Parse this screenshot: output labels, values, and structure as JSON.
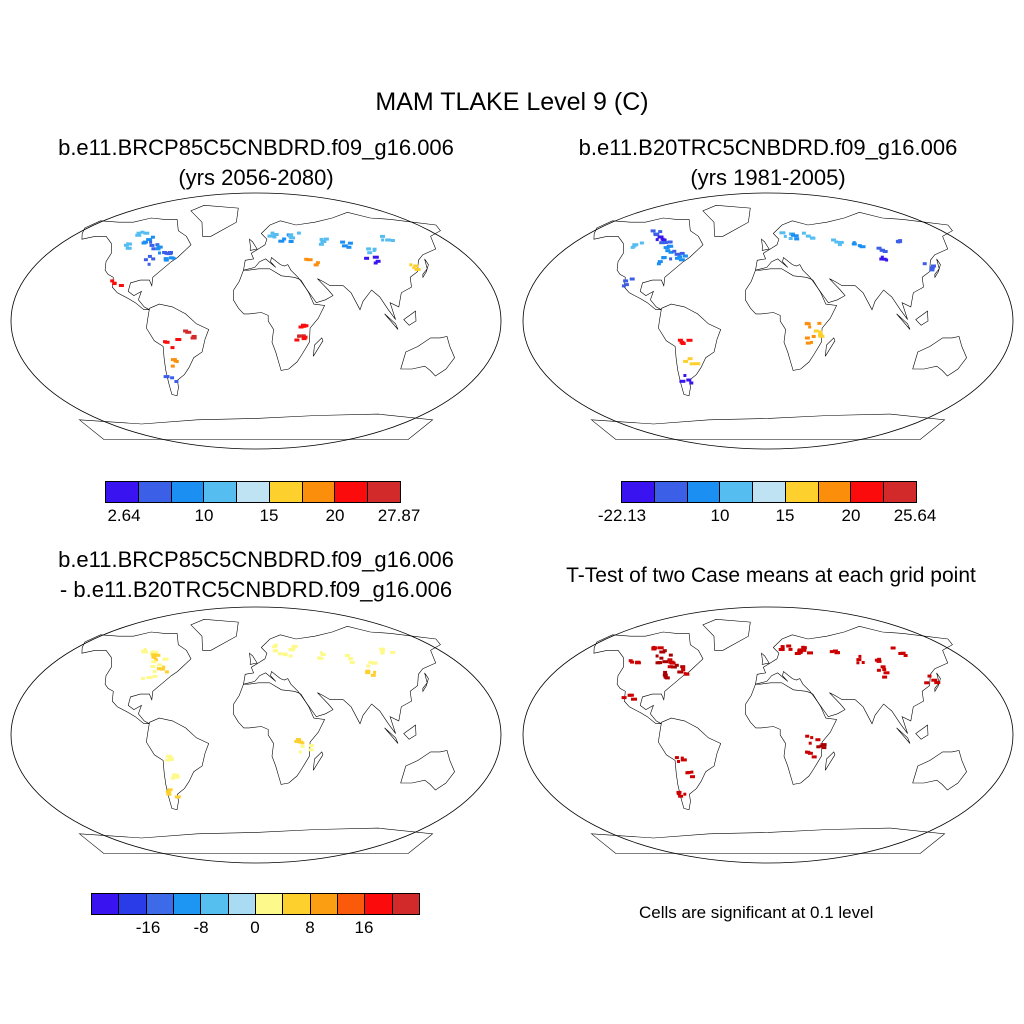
{
  "main_title": "MAM TLAKE Level 9 (C)",
  "panels": {
    "top_left": {
      "line1": "b.e11.BRCP85C5CNBDRD.f09_g16.006",
      "line2": "(yrs 2056-2080)"
    },
    "top_right": {
      "line1": "b.e11.B20TRC5CNBDRD.f09_g16.006",
      "line2": "(yrs 1981-2005)"
    },
    "bottom_left": {
      "line1": "b.e11.BRCP85C5CNBDRD.f09_g16.006",
      "line2": "- b.e11.B20TRC5CNBDRD.f09_g16.006"
    },
    "bottom_right": {
      "line1": "T-Test of two Case means at each grid point"
    }
  },
  "colorbars": {
    "top_left": {
      "colors": [
        "#3a14f0",
        "#3c5fe8",
        "#1c8ff2",
        "#55bdf0",
        "#bfe3f3",
        "#fdd02e",
        "#fb8f0c",
        "#fb0b0b",
        "#d22a2a"
      ],
      "labels": [
        "2.64",
        "10",
        "15",
        "20",
        "27.87"
      ]
    },
    "top_right": {
      "colors": [
        "#3a14f0",
        "#3c5fe8",
        "#1c8ff2",
        "#55bdf0",
        "#bfe3f3",
        "#fdd02e",
        "#fb8f0c",
        "#fb0b0b",
        "#d22a2a"
      ],
      "labels": [
        "-22.13",
        "10",
        "15",
        "20",
        "25.64"
      ]
    },
    "bottom": {
      "colors": [
        "#3a14f0",
        "#2a3ce8",
        "#3c6ae8",
        "#1c96f2",
        "#55c0f0",
        "#a9dcf2",
        "#fdf98a",
        "#fdd02e",
        "#fb9e12",
        "#fb5a0b",
        "#fb0b0b",
        "#d22a2a"
      ],
      "labels": [
        "-16",
        "-8",
        "0",
        "8",
        "16"
      ]
    }
  },
  "significance_note": "Cells are significant at 0.1 level"
}
